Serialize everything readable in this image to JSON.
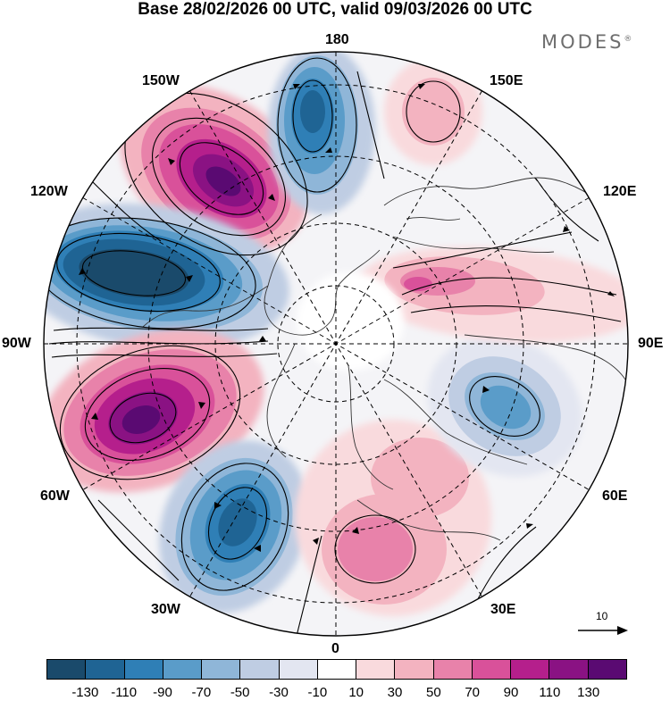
{
  "title": "Base 28/02/2026 00 UTC, valid 09/03/2026 00 UTC",
  "brand": "MODES",
  "brand_mark": "®",
  "longitude_labels": {
    "top": "180",
    "top_left": "150W",
    "top_right": "150E",
    "upper_left": "120W",
    "upper_right": "120E",
    "left": "90W",
    "right": "90E",
    "lower_left": "60W",
    "lower_right": "60E",
    "bottom_left": "30W",
    "bottom_right": "30E",
    "bottom": "0"
  },
  "reference_vector": {
    "label": "10"
  },
  "colorbar": {
    "colors": [
      "#1a4a6b",
      "#1f6494",
      "#2f7fb6",
      "#5a9cc9",
      "#8fb6d8",
      "#bfcde3",
      "#e3e6f1",
      "#ffffff",
      "#f9dadd",
      "#f3b3c0",
      "#e882aa",
      "#d9519a",
      "#b51f8c",
      "#8a1283",
      "#5a0a72"
    ],
    "ticks": [
      "-130",
      "-110",
      "-90",
      "-70",
      "-50",
      "-30",
      "-10",
      "10",
      "30",
      "50",
      "70",
      "90",
      "110",
      "130"
    ]
  },
  "colors": {
    "background": "#ffffff",
    "graticule": "#000000",
    "streamline": "#000000",
    "coastline": "#333333"
  }
}
